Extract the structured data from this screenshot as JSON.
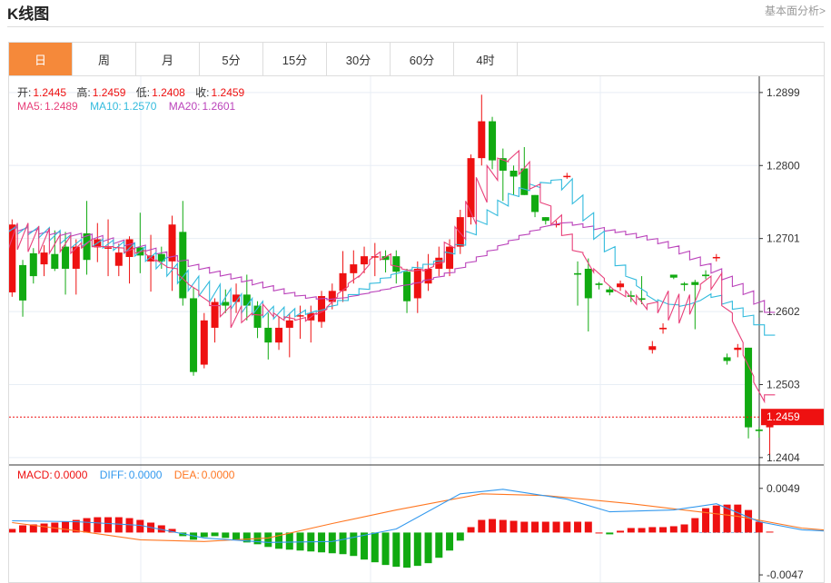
{
  "header": {
    "title": "K线图",
    "more_link": "基本面分析>"
  },
  "tabs": [
    "日",
    "周",
    "月",
    "5分",
    "15分",
    "30分",
    "60分",
    "4时"
  ],
  "active_tab": 0,
  "ohlc": {
    "open_label": "开:",
    "open": "1.2445",
    "high_label": "高:",
    "high": "1.2459",
    "low_label": "低:",
    "low": "1.2408",
    "close_label": "收:",
    "close": "1.2459"
  },
  "ma": {
    "ma5_label": "MA5:",
    "ma5": "1.2489",
    "ma10_label": "MA10:",
    "ma10": "1.2570",
    "ma20_label": "MA20:",
    "ma20": "1.2601"
  },
  "macd": {
    "macd_label": "MACD:",
    "macd": "0.0000",
    "diff_label": "DIFF:",
    "diff": "0.0000",
    "dea_label": "DEA:",
    "dea": "0.0000"
  },
  "colors": {
    "up": "#ee1111",
    "down": "#11aa11",
    "accent": "#f5893a",
    "ma5": "#e8407a",
    "ma10": "#33bbdd",
    "ma20": "#bb44bb",
    "diff": "#3399ee",
    "dea": "#ff7722"
  },
  "chart_data": {
    "type": "candlestick",
    "price_axis": {
      "ylim": [
        1.2394,
        1.2921
      ],
      "ticks": [
        "1.2899",
        "1.2800",
        "1.2701",
        "1.2602",
        "1.2503",
        "1.2404"
      ],
      "last_price": "1.2459"
    },
    "macd_axis": {
      "ylim": [
        -0.0055,
        0.0075
      ],
      "ticks": [
        "0.0049",
        "-0.0047"
      ]
    },
    "candles": [
      [
        1.2628,
        1.272,
        1.2727,
        1.2622
      ],
      [
        1.2665,
        1.2617,
        1.2672,
        1.2595
      ],
      [
        1.2681,
        1.265,
        1.2688,
        1.264
      ],
      [
        1.2666,
        1.2682,
        1.2692,
        1.265
      ],
      [
        1.268,
        1.266,
        1.2712,
        1.2657
      ],
      [
        1.269,
        1.266,
        1.271,
        1.2625
      ],
      [
        1.266,
        1.269,
        1.27,
        1.2625
      ],
      [
        1.2708,
        1.2672,
        1.2752,
        1.2652
      ],
      [
        1.2689,
        1.27,
        1.2722,
        1.2669
      ],
      [
        1.2689,
        1.2689,
        1.2727,
        1.265
      ],
      [
        1.2664,
        1.2682,
        1.2694,
        1.265
      ],
      [
        1.2676,
        1.27,
        1.2704,
        1.264
      ],
      [
        1.2689,
        1.2678,
        1.2736,
        1.2654
      ],
      [
        1.267,
        1.2678,
        1.2706,
        1.2629
      ],
      [
        1.268,
        1.267,
        1.269,
        1.266
      ],
      [
        1.267,
        1.272,
        1.2732,
        1.263
      ],
      [
        1.271,
        1.262,
        1.2752,
        1.261
      ],
      [
        1.262,
        1.252,
        1.2634,
        1.2515
      ],
      [
        1.253,
        1.259,
        1.26,
        1.2525
      ],
      [
        1.258,
        1.2615,
        1.262,
        1.256
      ],
      [
        1.2615,
        1.261,
        1.2632,
        1.26
      ],
      [
        1.2615,
        1.2625,
        1.264,
        1.26
      ],
      [
        1.2625,
        1.261,
        1.2652,
        1.259
      ],
      [
        1.261,
        1.258,
        1.2616,
        1.2566
      ],
      [
        1.258,
        1.256,
        1.26,
        1.2537
      ],
      [
        1.256,
        1.258,
        1.2595,
        1.255
      ],
      [
        1.258,
        1.259,
        1.26,
        1.254
      ],
      [
        1.2597,
        1.2597,
        1.261,
        1.2565
      ],
      [
        1.259,
        1.26,
        1.261,
        1.256
      ],
      [
        1.2588,
        1.2623,
        1.263,
        1.258
      ],
      [
        1.2615,
        1.263,
        1.264,
        1.2605
      ],
      [
        1.263,
        1.2654,
        1.2684,
        1.2615
      ],
      [
        1.2654,
        1.2666,
        1.2685,
        1.264
      ],
      [
        1.2666,
        1.2677,
        1.269,
        1.2654
      ],
      [
        1.2677,
        1.2677,
        1.2695,
        1.265
      ],
      [
        1.2677,
        1.2672,
        1.2685,
        1.2655
      ],
      [
        1.2677,
        1.2656,
        1.2685,
        1.264
      ],
      [
        1.2656,
        1.2616,
        1.266,
        1.26
      ],
      [
        1.262,
        1.266,
        1.267,
        1.26
      ],
      [
        1.264,
        1.266,
        1.268,
        1.263
      ],
      [
        1.266,
        1.2675,
        1.269,
        1.265
      ],
      [
        1.266,
        1.269,
        1.27,
        1.265
      ],
      [
        1.269,
        1.273,
        1.274,
        1.268
      ],
      [
        1.273,
        1.281,
        1.2815,
        1.272
      ],
      [
        1.281,
        1.286,
        1.2896,
        1.28
      ],
      [
        1.286,
        1.2807,
        1.2866,
        1.2795
      ],
      [
        1.281,
        1.2793,
        1.2823,
        1.2752
      ],
      [
        1.2793,
        1.2785,
        1.28,
        1.276
      ],
      [
        1.2796,
        1.276,
        1.2825,
        1.276
      ],
      [
        1.276,
        1.2737,
        1.276,
        1.273
      ],
      [
        1.273,
        1.2725,
        1.273,
        1.272
      ],
      [
        1.2719,
        1.2721,
        1.2725,
        1.2716
      ],
      [
        1.2786,
        1.2786,
        1.279,
        1.2782
      ],
      [
        1.2654,
        1.2652,
        1.267,
        1.261
      ],
      [
        1.266,
        1.262,
        1.2674,
        1.2575
      ],
      [
        1.264,
        1.2638,
        1.2642,
        1.2632
      ],
      [
        1.2632,
        1.2628,
        1.2636,
        1.2624
      ],
      [
        1.2635,
        1.264,
        1.2644,
        1.263
      ],
      [
        1.2624,
        1.2622,
        1.263,
        1.2615
      ],
      [
        1.262,
        1.2618,
        1.265,
        1.2612
      ],
      [
        1.255,
        1.2555,
        1.2562,
        1.2545
      ],
      [
        1.2578,
        1.258,
        1.2586,
        1.2572
      ],
      [
        1.2652,
        1.2648,
        1.2652,
        1.2646
      ],
      [
        1.264,
        1.2638,
        1.2642,
        1.263
      ],
      [
        1.2642,
        1.2638,
        1.2645,
        1.2578
      ],
      [
        1.2652,
        1.265,
        1.2658,
        1.2646
      ],
      [
        1.2676,
        1.2676,
        1.268,
        1.267
      ],
      [
        1.254,
        1.2535,
        1.2545,
        1.253
      ],
      [
        1.255,
        1.2553,
        1.2558,
        1.254
      ],
      [
        1.2553,
        1.2445,
        1.2553,
        1.243
      ],
      [
        1.2442,
        1.244,
        1.2445,
        1.2431
      ],
      [
        1.2445,
        1.2459,
        1.2459,
        1.2408
      ]
    ],
    "ma5": [
      [
        1.268,
        1.2722
      ],
      [
        1.2686,
        1.2722
      ],
      [
        1.2683,
        1.2718
      ],
      [
        1.268,
        1.2715
      ],
      [
        1.2681,
        1.2706
      ],
      [
        1.2683,
        1.2705
      ],
      [
        1.2681,
        1.2695
      ],
      [
        1.2688,
        1.27
      ],
      [
        1.269,
        1.269
      ],
      [
        1.269,
        1.269
      ],
      [
        1.2689,
        1.2688
      ],
      [
        1.2682,
        1.2688
      ],
      [
        1.2681,
        1.2685
      ],
      [
        1.268,
        1.267
      ],
      [
        1.2672,
        1.2663
      ],
      [
        1.2662,
        1.266
      ],
      [
        1.2653,
        1.264
      ],
      [
        1.2639,
        1.263
      ],
      [
        1.2625,
        1.2615
      ],
      [
        1.261,
        1.261
      ],
      [
        1.2595,
        1.261
      ],
      [
        1.258,
        1.261
      ],
      [
        1.2587,
        1.26
      ],
      [
        1.2598,
        1.2597
      ],
      [
        1.2612,
        1.2595
      ],
      [
        1.26,
        1.259
      ],
      [
        1.2595,
        1.2592
      ],
      [
        1.259,
        1.2594
      ],
      [
        1.2589,
        1.26
      ],
      [
        1.2598,
        1.2605
      ],
      [
        1.2608,
        1.2622
      ],
      [
        1.2626,
        1.2636
      ],
      [
        1.264,
        1.265
      ],
      [
        1.2649,
        1.2666
      ],
      [
        1.2672,
        1.2683
      ],
      [
        1.2672,
        1.268
      ],
      [
        1.2665,
        1.2662
      ],
      [
        1.266,
        1.2657
      ],
      [
        1.2657,
        1.2659
      ],
      [
        1.2657,
        1.2663
      ],
      [
        1.2666,
        1.2669
      ],
      [
        1.2696,
        1.2688
      ],
      [
        1.2717,
        1.27
      ],
      [
        1.2752,
        1.272
      ],
      [
        1.2784,
        1.275
      ],
      [
        1.28,
        1.278
      ],
      [
        1.281,
        1.2805
      ],
      [
        1.2807,
        1.282
      ],
      [
        1.2788,
        1.2805
      ],
      [
        1.2768,
        1.2775
      ],
      [
        1.275,
        1.2745
      ],
      [
        1.272,
        1.2733
      ],
      [
        1.2705,
        1.2707
      ],
      [
        1.2685,
        1.2682
      ],
      [
        1.268,
        1.2655
      ],
      [
        1.266,
        1.2647
      ],
      [
        1.2643,
        1.263
      ],
      [
        1.2631,
        1.2622
      ],
      [
        1.263,
        1.2612
      ],
      [
        1.2624,
        1.2605
      ],
      [
        1.2612,
        1.2615
      ],
      [
        1.26,
        1.263
      ],
      [
        1.259,
        1.2626
      ],
      [
        1.2586,
        1.2625
      ],
      [
        1.2598,
        1.2633
      ],
      [
        1.2639,
        1.265
      ],
      [
        1.2632,
        1.2654
      ],
      [
        1.261,
        1.26
      ],
      [
        1.2589,
        1.256
      ],
      [
        1.2543,
        1.2514
      ],
      [
        1.2506,
        1.248
      ],
      [
        1.2489,
        1.2489
      ]
    ],
    "ma10": [
      [
        1.2708,
        1.2719
      ],
      [
        1.2707,
        1.2718
      ],
      [
        1.2706,
        1.2717
      ],
      [
        1.2702,
        1.2716
      ],
      [
        1.2698,
        1.2712
      ],
      [
        1.2694,
        1.2706
      ],
      [
        1.2688,
        1.27
      ],
      [
        1.269,
        1.27
      ],
      [
        1.269,
        1.27
      ],
      [
        1.2688,
        1.2699
      ],
      [
        1.2685,
        1.2697
      ],
      [
        1.2681,
        1.2695
      ],
      [
        1.2677,
        1.269
      ],
      [
        1.267,
        1.2682
      ],
      [
        1.266,
        1.2676
      ],
      [
        1.265,
        1.2667
      ],
      [
        1.264,
        1.2658
      ],
      [
        1.263,
        1.265
      ],
      [
        1.2623,
        1.2643
      ],
      [
        1.2615,
        1.2639
      ],
      [
        1.261,
        1.2633
      ],
      [
        1.2605,
        1.2626
      ],
      [
        1.26,
        1.262
      ],
      [
        1.2597,
        1.2616
      ],
      [
        1.2594,
        1.2609
      ],
      [
        1.2592,
        1.2608
      ],
      [
        1.2592,
        1.2606
      ],
      [
        1.2595,
        1.2604
      ],
      [
        1.2598,
        1.2603
      ],
      [
        1.2602,
        1.2606
      ],
      [
        1.2608,
        1.2611
      ],
      [
        1.2617,
        1.2617
      ],
      [
        1.2625,
        1.2625
      ],
      [
        1.2633,
        1.2632
      ],
      [
        1.264,
        1.2641
      ],
      [
        1.2647,
        1.2648
      ],
      [
        1.2652,
        1.2655
      ],
      [
        1.2656,
        1.2659
      ],
      [
        1.2662,
        1.2661
      ],
      [
        1.2666,
        1.2666
      ],
      [
        1.267,
        1.2671
      ],
      [
        1.2683,
        1.268
      ],
      [
        1.2693,
        1.2692
      ],
      [
        1.2711,
        1.2706
      ],
      [
        1.2726,
        1.272
      ],
      [
        1.274,
        1.2732
      ],
      [
        1.2753,
        1.2745
      ],
      [
        1.2762,
        1.2758
      ],
      [
        1.277,
        1.2766
      ],
      [
        1.2775,
        1.277
      ],
      [
        1.2777,
        1.2776
      ],
      [
        1.278,
        1.2781
      ],
      [
        1.2767,
        1.2782
      ],
      [
        1.2748,
        1.276
      ],
      [
        1.2725,
        1.2736
      ],
      [
        1.27,
        1.2711
      ],
      [
        1.2683,
        1.269
      ],
      [
        1.2664,
        1.2665
      ],
      [
        1.265,
        1.2645
      ],
      [
        1.2637,
        1.2628
      ],
      [
        1.2624,
        1.2615
      ],
      [
        1.2618,
        1.2612
      ],
      [
        1.2612,
        1.2611
      ],
      [
        1.2609,
        1.2612
      ],
      [
        1.2612,
        1.2617
      ],
      [
        1.2617,
        1.2626
      ],
      [
        1.2621,
        1.2624
      ],
      [
        1.2612,
        1.2616
      ],
      [
        1.2605,
        1.2607
      ],
      [
        1.2595,
        1.2597
      ],
      [
        1.2584,
        1.2584
      ],
      [
        1.257,
        1.257
      ]
    ],
    "ma20": [
      [
        1.2711,
        1.2716
      ],
      [
        1.2711,
        1.2716
      ],
      [
        1.2709,
        1.2714
      ],
      [
        1.2707,
        1.2711
      ],
      [
        1.2706,
        1.271
      ],
      [
        1.2705,
        1.2709
      ],
      [
        1.2704,
        1.2708
      ],
      [
        1.2702,
        1.2707
      ],
      [
        1.27,
        1.2705
      ],
      [
        1.2697,
        1.2702
      ],
      [
        1.2694,
        1.2699
      ],
      [
        1.2691,
        1.2695
      ],
      [
        1.2688,
        1.2692
      ],
      [
        1.2684,
        1.2688
      ],
      [
        1.268,
        1.2683
      ],
      [
        1.2675,
        1.2678
      ],
      [
        1.267,
        1.2672
      ],
      [
        1.2663,
        1.2666
      ],
      [
        1.2659,
        1.2662
      ],
      [
        1.2654,
        1.2657
      ],
      [
        1.265,
        1.2653
      ],
      [
        1.2646,
        1.2649
      ],
      [
        1.2642,
        1.2645
      ],
      [
        1.2638,
        1.2642
      ],
      [
        1.2634,
        1.2637
      ],
      [
        1.263,
        1.2633
      ],
      [
        1.2626,
        1.2628
      ],
      [
        1.2623,
        1.2624
      ],
      [
        1.262,
        1.2622
      ],
      [
        1.2619,
        1.262
      ],
      [
        1.2618,
        1.262
      ],
      [
        1.262,
        1.2621
      ],
      [
        1.2622,
        1.2624
      ],
      [
        1.2625,
        1.2627
      ],
      [
        1.2628,
        1.263
      ],
      [
        1.2631,
        1.2633
      ],
      [
        1.2634,
        1.2637
      ],
      [
        1.2637,
        1.2639
      ],
      [
        1.264,
        1.2642
      ],
      [
        1.2644,
        1.2646
      ],
      [
        1.2648,
        1.265
      ],
      [
        1.2654,
        1.2655
      ],
      [
        1.266,
        1.2662
      ],
      [
        1.2668,
        1.267
      ],
      [
        1.2676,
        1.2678
      ],
      [
        1.2684,
        1.2686
      ],
      [
        1.2691,
        1.2694
      ],
      [
        1.2698,
        1.27
      ],
      [
        1.2705,
        1.2707
      ],
      [
        1.2711,
        1.2713
      ],
      [
        1.2716,
        1.2719
      ],
      [
        1.2719,
        1.2722
      ],
      [
        1.2722,
        1.2723
      ],
      [
        1.2719,
        1.2721
      ],
      [
        1.2716,
        1.2718
      ],
      [
        1.2713,
        1.2716
      ],
      [
        1.2711,
        1.2713
      ],
      [
        1.2709,
        1.2711
      ],
      [
        1.2706,
        1.2708
      ],
      [
        1.2702,
        1.2705
      ],
      [
        1.2699,
        1.2701
      ],
      [
        1.2694,
        1.2697
      ],
      [
        1.2688,
        1.2691
      ],
      [
        1.268,
        1.2684
      ],
      [
        1.2672,
        1.2676
      ],
      [
        1.2664,
        1.2667
      ],
      [
        1.2654,
        1.266
      ],
      [
        1.2645,
        1.265
      ],
      [
        1.2636,
        1.264
      ],
      [
        1.2625,
        1.263
      ],
      [
        1.2612,
        1.2617
      ],
      [
        1.2601,
        1.2601
      ]
    ],
    "macd_hist": [
      0.0004,
      0.0008,
      0.0009,
      0.001,
      0.0011,
      0.0012,
      0.0014,
      0.0016,
      0.0017,
      0.0017,
      0.0017,
      0.0016,
      0.0014,
      0.0011,
      0.0008,
      0.0004,
      -0.0004,
      -0.0008,
      -0.0005,
      -0.0004,
      -0.0006,
      -0.0008,
      -0.0011,
      -0.0013,
      -0.0016,
      -0.0018,
      -0.0019,
      -0.002,
      -0.0021,
      -0.0022,
      -0.0023,
      -0.0024,
      -0.0026,
      -0.003,
      -0.0033,
      -0.0036,
      -0.0038,
      -0.0039,
      -0.0037,
      -0.0034,
      -0.0028,
      -0.002,
      -0.0009,
      0.0006,
      0.0014,
      0.0015,
      0.0014,
      0.0013,
      0.0012,
      0.0012,
      0.0012,
      0.0012,
      0.0012,
      0.0012,
      0.0012,
      0.0,
      -0.0002,
      0.0002,
      0.0005,
      0.0005,
      0.0006,
      0.0006,
      0.0007,
      0.0009,
      0.0016,
      0.0027,
      0.003,
      0.0031,
      0.0031,
      0.0025,
      0.0012,
      0.0001
    ],
    "diff": [
      [
        0,
        0.0013
      ],
      [
        6,
        0.0012
      ],
      [
        12,
        0.0008
      ],
      [
        18,
        -0.0006
      ],
      [
        24,
        -0.0011
      ],
      [
        30,
        -0.001
      ],
      [
        36,
        0.0004
      ],
      [
        42,
        0.0043
      ],
      [
        46,
        0.0048
      ],
      [
        52,
        0.0037
      ],
      [
        56,
        0.0023
      ],
      [
        62,
        0.0025
      ],
      [
        66,
        0.0032
      ],
      [
        70,
        0.0012
      ],
      [
        74,
        0.0003
      ],
      [
        79,
        0.0
      ]
    ],
    "dea": [
      [
        0,
        0.0011
      ],
      [
        6,
        0.0002
      ],
      [
        12,
        -0.0008
      ],
      [
        18,
        -0.001
      ],
      [
        24,
        -0.0006
      ],
      [
        30,
        0.001
      ],
      [
        36,
        0.0025
      ],
      [
        44,
        0.0043
      ],
      [
        50,
        0.0041
      ],
      [
        58,
        0.0032
      ],
      [
        68,
        0.0018
      ],
      [
        74,
        0.0005
      ],
      [
        79,
        0.0
      ]
    ]
  }
}
